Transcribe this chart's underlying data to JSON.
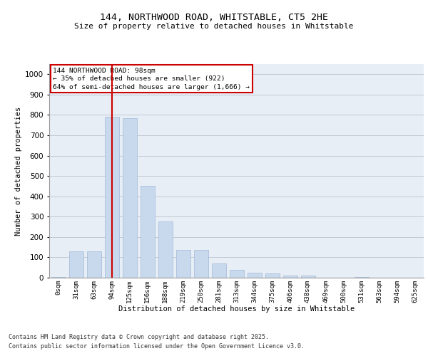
{
  "title_line1": "144, NORTHWOOD ROAD, WHITSTABLE, CT5 2HE",
  "title_line2": "Size of property relative to detached houses in Whitstable",
  "xlabel": "Distribution of detached houses by size in Whitstable",
  "ylabel": "Number of detached properties",
  "bar_labels": [
    "0sqm",
    "31sqm",
    "63sqm",
    "94sqm",
    "125sqm",
    "156sqm",
    "188sqm",
    "219sqm",
    "250sqm",
    "281sqm",
    "313sqm",
    "344sqm",
    "375sqm",
    "406sqm",
    "438sqm",
    "469sqm",
    "500sqm",
    "531sqm",
    "563sqm",
    "594sqm",
    "625sqm"
  ],
  "bar_values": [
    5,
    130,
    130,
    790,
    785,
    450,
    275,
    135,
    135,
    70,
    40,
    25,
    20,
    12,
    12,
    0,
    0,
    5,
    0,
    0,
    0
  ],
  "bar_color": "#c9d9ed",
  "bar_edge_color": "#a0b8d8",
  "grid_color": "#c0c8d4",
  "background_color": "#e8eef5",
  "red_line_index": 3,
  "red_line_color": "#cc0000",
  "annotation_box_text": "144 NORTHWOOD ROAD: 98sqm\n← 35% of detached houses are smaller (922)\n64% of semi-detached houses are larger (1,666) →",
  "annotation_box_color": "#cc0000",
  "ylim": [
    0,
    1050
  ],
  "yticks": [
    0,
    100,
    200,
    300,
    400,
    500,
    600,
    700,
    800,
    900,
    1000
  ],
  "footnote1": "Contains HM Land Registry data © Crown copyright and database right 2025.",
  "footnote2": "Contains public sector information licensed under the Open Government Licence v3.0."
}
